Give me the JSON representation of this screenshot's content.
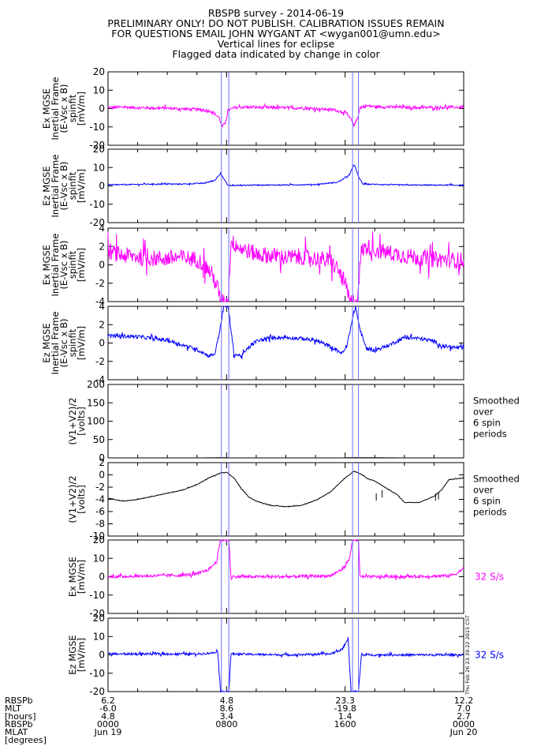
{
  "header": {
    "line1": "RBSPB survey - 2014-06-19",
    "line2": "PRELIMINARY ONLY! DO NOT PUBLISH. CALIBRATION ISSUES REMAIN",
    "line3": "FOR QUESTIONS EMAIL JOHN WYGANT AT <wygan001@umn.edu>",
    "line4": "Vertical lines for eclipse",
    "line5": "Flagged data indicated by change in color"
  },
  "colors": {
    "magenta": "#ff00ff",
    "blue": "#0000ff",
    "black": "#000000",
    "eclipse": "#6a6aff"
  },
  "chart_data": {
    "type": "line",
    "x_unit": "hours since 2014-06-19 00:00 UT",
    "x_range": [
      0,
      24
    ],
    "eclipse_hours": [
      [
        7.65,
        8.15
      ],
      [
        16.5,
        16.9
      ]
    ],
    "timestamp_note": "Thu Feb 26 23:39:22 2015 CST",
    "panels": [
      {
        "id": "p1",
        "ylabel": [
          "Ex MGSE",
          "Inertial Frame",
          "(E-Vsc x B)",
          "spinfit",
          "[mV/m]"
        ],
        "ylim": [
          -20,
          20
        ],
        "yticks": [
          -20,
          -10,
          0,
          10,
          20
        ],
        "color": "#ff00ff",
        "side_label": "",
        "series": [
          [
            0,
            0.5
          ],
          [
            1,
            0.8
          ],
          [
            2,
            0.5
          ],
          [
            3,
            0.3
          ],
          [
            4,
            0.2
          ],
          [
            5,
            -0.2
          ],
          [
            6,
            -0.5
          ],
          [
            7,
            -1.5
          ],
          [
            7.5,
            -5
          ],
          [
            7.7,
            -10
          ],
          [
            7.9,
            -8
          ],
          [
            8.1,
            -1
          ],
          [
            8.5,
            0.3
          ],
          [
            9,
            0.8
          ],
          [
            11,
            0.5
          ],
          [
            13,
            0.3
          ],
          [
            15,
            -0.5
          ],
          [
            16,
            -2
          ],
          [
            16.4,
            -6
          ],
          [
            16.6,
            -9
          ],
          [
            16.8,
            -6
          ],
          [
            17,
            0.5
          ],
          [
            17.5,
            1.5
          ],
          [
            18,
            1
          ],
          [
            21,
            0.5
          ],
          [
            24,
            0.8
          ]
        ],
        "noise": 0.8
      },
      {
        "id": "p2",
        "ylabel": [
          "Ez MGSE",
          "Inertial Frame",
          "(E-Vsc x B)",
          "spinfit",
          "[mV/m]"
        ],
        "ylim": [
          -20,
          20
        ],
        "yticks": [
          -20,
          -10,
          0,
          10,
          20
        ],
        "color": "#0000ff",
        "side_label": "",
        "series": [
          [
            0,
            0.5
          ],
          [
            3,
            1
          ],
          [
            5,
            1
          ],
          [
            6.5,
            1.5
          ],
          [
            7.2,
            3
          ],
          [
            7.6,
            7
          ],
          [
            7.8,
            4
          ],
          [
            8.1,
            0.2
          ],
          [
            10,
            0.5
          ],
          [
            12,
            0.5
          ],
          [
            14,
            0.8
          ],
          [
            15.5,
            2
          ],
          [
            16.3,
            6
          ],
          [
            16.6,
            12
          ],
          [
            16.9,
            5
          ],
          [
            17.2,
            1
          ],
          [
            20,
            0.5
          ],
          [
            24,
            0.4
          ]
        ],
        "noise": 0.3
      },
      {
        "id": "p3",
        "ylabel": [
          "Ex MGSE",
          "Inertial Frame",
          "(E-Vsc x B)",
          "spinfit",
          "[mV/m]"
        ],
        "ylim": [
          -4,
          4
        ],
        "yticks": [
          -4,
          -2,
          0,
          2,
          4
        ],
        "color": "#ff00ff",
        "side_label": "",
        "series": [
          [
            0,
            1.5
          ],
          [
            1,
            1
          ],
          [
            2,
            0.9
          ],
          [
            3,
            0.7
          ],
          [
            4,
            0.7
          ],
          [
            5,
            0.8
          ],
          [
            6,
            0.6
          ],
          [
            6.5,
            0
          ],
          [
            7,
            -1
          ],
          [
            7.4,
            -2.5
          ],
          [
            7.6,
            -4
          ],
          [
            8.1,
            -4
          ],
          [
            8.3,
            2.5
          ],
          [
            8.6,
            2.2
          ],
          [
            9,
            1.8
          ],
          [
            10,
            1.2
          ],
          [
            11,
            1
          ],
          [
            12,
            0.8
          ],
          [
            13,
            0.9
          ],
          [
            14,
            0.7
          ],
          [
            15,
            0.4
          ],
          [
            15.5,
            -0.5
          ],
          [
            16,
            -2
          ],
          [
            16.3,
            -4
          ],
          [
            16.8,
            -4
          ],
          [
            17.1,
            1.5
          ],
          [
            17.5,
            2
          ],
          [
            18,
            1.6
          ],
          [
            20,
            1
          ],
          [
            22,
            0.6
          ],
          [
            24,
            0.5
          ]
        ],
        "noise": 0.9
      },
      {
        "id": "p4",
        "ylabel": [
          "Ez MGSE",
          "Inertial Frame",
          "(E-Vsc x B)",
          "spinfit",
          "[mV/m]"
        ],
        "ylim": [
          -4,
          4
        ],
        "yticks": [
          -4,
          -2,
          0,
          2,
          4
        ],
        "color": "#0000ff",
        "side_label": "",
        "series": [
          [
            0,
            0.8
          ],
          [
            2,
            0.7
          ],
          [
            4,
            0.3
          ],
          [
            5,
            -0.2
          ],
          [
            6,
            -0.7
          ],
          [
            6.8,
            -1.4
          ],
          [
            7.2,
            -1.2
          ],
          [
            7.5,
            1
          ],
          [
            7.8,
            4
          ],
          [
            8.1,
            4
          ],
          [
            8.5,
            -1.2
          ],
          [
            9,
            -1.4
          ],
          [
            9.5,
            -0.5
          ],
          [
            10,
            0.2
          ],
          [
            11,
            0.6
          ],
          [
            12,
            0.6
          ],
          [
            13,
            0.5
          ],
          [
            14,
            0.3
          ],
          [
            15,
            -0.4
          ],
          [
            15.8,
            -1.1
          ],
          [
            16.1,
            -0.5
          ],
          [
            16.4,
            2
          ],
          [
            16.7,
            4
          ],
          [
            17,
            1.5
          ],
          [
            17.4,
            -0.5
          ],
          [
            18,
            -0.8
          ],
          [
            19,
            -0.2
          ],
          [
            20,
            0.6
          ],
          [
            21,
            0.5
          ],
          [
            22,
            0.2
          ],
          [
            22.5,
            -0.3
          ],
          [
            23,
            -0.4
          ],
          [
            24,
            -0.6
          ]
        ],
        "noise": 0.2
      },
      {
        "id": "p5",
        "ylabel": [
          "(V1+V2)/2",
          "[volts]"
        ],
        "ylim": [
          0,
          200
        ],
        "yticks": [
          0,
          50,
          100,
          150,
          200
        ],
        "color": "#000000",
        "side_label": "Smoothed\nover\n6 spin\nperiods",
        "series": [
          [
            0,
            -2
          ],
          [
            7.8,
            0.5
          ],
          [
            12,
            -4
          ],
          [
            16.6,
            0.8
          ],
          [
            24,
            -1
          ]
        ],
        "noise": 0
      },
      {
        "id": "p6",
        "ylabel": [
          "(V1+V2)/2",
          "[volts]"
        ],
        "ylim": [
          -10,
          2
        ],
        "yticks": [
          -10,
          -8,
          -6,
          -4,
          -2,
          0,
          2
        ],
        "color": "#000000",
        "side_label": "Smoothed\nover\n6 spin\nperiods",
        "series": [
          [
            0,
            -3.8
          ],
          [
            1,
            -4.3
          ],
          [
            2,
            -4
          ],
          [
            3,
            -3.5
          ],
          [
            4,
            -3
          ],
          [
            5,
            -2.5
          ],
          [
            6,
            -1.6
          ],
          [
            6.8,
            -0.5
          ],
          [
            7.6,
            0.3
          ],
          [
            8,
            0.4
          ],
          [
            8.5,
            -0.5
          ],
          [
            9,
            -2.3
          ],
          [
            9.5,
            -3.6
          ],
          [
            10,
            -4.3
          ],
          [
            11,
            -5
          ],
          [
            12,
            -5.2
          ],
          [
            13,
            -5
          ],
          [
            14,
            -4.2
          ],
          [
            15,
            -2.8
          ],
          [
            16,
            -0.5
          ],
          [
            16.6,
            0.6
          ],
          [
            17,
            0.2
          ],
          [
            17.5,
            -0.6
          ],
          [
            18,
            -1
          ],
          [
            19,
            -2.5
          ],
          [
            19.5,
            -3.2
          ],
          [
            20,
            -4.5
          ],
          [
            21,
            -4.5
          ],
          [
            22,
            -3.5
          ],
          [
            22.5,
            -2.5
          ],
          [
            23,
            -0.8
          ],
          [
            24,
            -0.5
          ]
        ],
        "spikes": [
          [
            18.1,
            -3
          ],
          [
            18.5,
            -2.5
          ],
          [
            22.1,
            -3
          ],
          [
            22.3,
            -2.8
          ]
        ],
        "noise": 0.05
      },
      {
        "id": "p7",
        "ylabel": [
          "Ex MGSE",
          "[mV/m]"
        ],
        "ylim": [
          -20,
          20
        ],
        "yticks": [
          -20,
          -10,
          0,
          10,
          20
        ],
        "color": "#ff00ff",
        "side_label": "32 S/s",
        "series": [
          [
            0,
            0
          ],
          [
            3,
            0.5
          ],
          [
            5,
            0.8
          ],
          [
            6,
            1.5
          ],
          [
            6.8,
            4
          ],
          [
            7.3,
            8
          ],
          [
            7.6,
            20
          ],
          [
            8.15,
            20
          ],
          [
            8.3,
            0
          ],
          [
            12,
            0
          ],
          [
            15,
            0.5
          ],
          [
            15.8,
            4
          ],
          [
            16.3,
            10
          ],
          [
            16.5,
            20
          ],
          [
            16.9,
            20
          ],
          [
            17,
            0
          ],
          [
            20,
            0
          ],
          [
            23,
            0.5
          ],
          [
            23.6,
            2
          ],
          [
            24,
            5
          ]
        ],
        "noise": 0.8
      },
      {
        "id": "p8",
        "ylabel": [
          "Ez MGSE",
          "[mV/m]"
        ],
        "ylim": [
          -20,
          20
        ],
        "yticks": [
          -20,
          -10,
          0,
          10,
          20
        ],
        "color": "#0000ff",
        "side_label": "32 S/s",
        "series": [
          [
            0,
            0.5
          ],
          [
            3,
            0.5
          ],
          [
            6,
            0.5
          ],
          [
            7,
            1
          ],
          [
            7.4,
            2
          ],
          [
            7.6,
            -20
          ],
          [
            8.15,
            -20
          ],
          [
            8.3,
            0.5
          ],
          [
            12,
            0
          ],
          [
            15,
            0.5
          ],
          [
            15.8,
            3
          ],
          [
            16.2,
            9
          ],
          [
            16.4,
            -20
          ],
          [
            16.9,
            -20
          ],
          [
            17.1,
            0
          ],
          [
            20,
            0
          ],
          [
            24,
            0
          ]
        ],
        "noise": 0.6
      }
    ],
    "x_ticklabels": {
      "row_labels": [
        "RBSPb",
        "MLT",
        "[hours]",
        "RBSPb",
        "MLAT",
        "[degrees]"
      ],
      "columns": [
        {
          "hour": 0,
          "values": [
            "6.2",
            "-6.0",
            "4.8",
            "0000",
            "Jun 19"
          ]
        },
        {
          "hour": 8,
          "values": [
            "4.8",
            "8.6",
            "3.4",
            "0800",
            ""
          ]
        },
        {
          "hour": 16,
          "values": [
            "23.3",
            "-19.8",
            "1.4",
            "1600",
            ""
          ]
        },
        {
          "hour": 24,
          "values": [
            "12.2",
            "7.0",
            "2.7",
            "0000",
            "Jun 20"
          ]
        }
      ]
    }
  }
}
